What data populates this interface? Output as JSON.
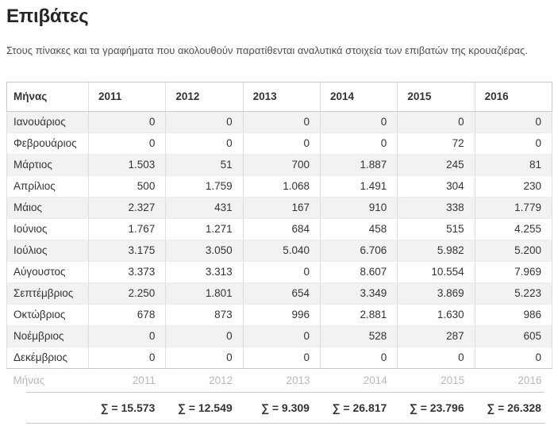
{
  "page": {
    "title": "Επιβάτες",
    "subtitle": "Στους πίνακες και τα γραφήματα που ακολουθούν παρατίθενται αναλυτικά στοιχεία των επιβατών της κρουαζιέρας."
  },
  "table": {
    "header": {
      "month_label": "Μήνας",
      "years": [
        "2011",
        "2012",
        "2013",
        "2014",
        "2015",
        "2016"
      ]
    },
    "rows": [
      {
        "month": "Ιανουάριος",
        "values": [
          "0",
          "0",
          "0",
          "0",
          "0",
          "0"
        ]
      },
      {
        "month": "Φεβρουάριος",
        "values": [
          "0",
          "0",
          "0",
          "0",
          "72",
          "0"
        ]
      },
      {
        "month": "Μάρτιος",
        "values": [
          "1.503",
          "51",
          "700",
          "1.887",
          "245",
          "81"
        ]
      },
      {
        "month": "Απρίλιος",
        "values": [
          "500",
          "1.759",
          "1.068",
          "1.491",
          "304",
          "230"
        ]
      },
      {
        "month": "Μάιος",
        "values": [
          "2.327",
          "431",
          "167",
          "910",
          "338",
          "1.779"
        ]
      },
      {
        "month": "Ιούνιος",
        "values": [
          "1.767",
          "1.271",
          "684",
          "458",
          "515",
          "4.255"
        ]
      },
      {
        "month": "Ιούλιος",
        "values": [
          "3.175",
          "3.050",
          "5.040",
          "6.706",
          "5.982",
          "5.200"
        ]
      },
      {
        "month": "Αύγουστος",
        "values": [
          "3.373",
          "3.313",
          "0",
          "8.607",
          "10.554",
          "7.969"
        ]
      },
      {
        "month": "Σεπτέμβριος",
        "values": [
          "2.250",
          "1.801",
          "654",
          "3.349",
          "3.869",
          "5.223"
        ]
      },
      {
        "month": "Οκτώβριος",
        "values": [
          "678",
          "873",
          "996",
          "2.881",
          "1.630",
          "986"
        ]
      },
      {
        "month": "Νοέμβριος",
        "values": [
          "0",
          "0",
          "0",
          "528",
          "287",
          "605"
        ]
      },
      {
        "month": "Δεκέμβριος",
        "values": [
          "0",
          "0",
          "0",
          "0",
          "0",
          "0"
        ]
      }
    ],
    "footer": {
      "month_label": "Μήνας",
      "years": [
        "2011",
        "2012",
        "2013",
        "2014",
        "2015",
        "2016"
      ]
    },
    "totals": {
      "sigma_symbol": "∑",
      "labels": [
        "∑ = 15.573",
        "∑ = 12.549",
        "∑ = 9.309",
        "∑ = 26.817",
        "∑ = 23.796",
        "∑ = 26.328"
      ]
    }
  },
  "colors": {
    "stripe_row": "#f2f2f2",
    "border_strong": "#c9c9c9",
    "border_light": "#dcdcdc",
    "text": "#333333",
    "muted_footer_text": "#b9b9b9",
    "title_text": "#262626",
    "subtitle_text": "#4f4f4f"
  }
}
